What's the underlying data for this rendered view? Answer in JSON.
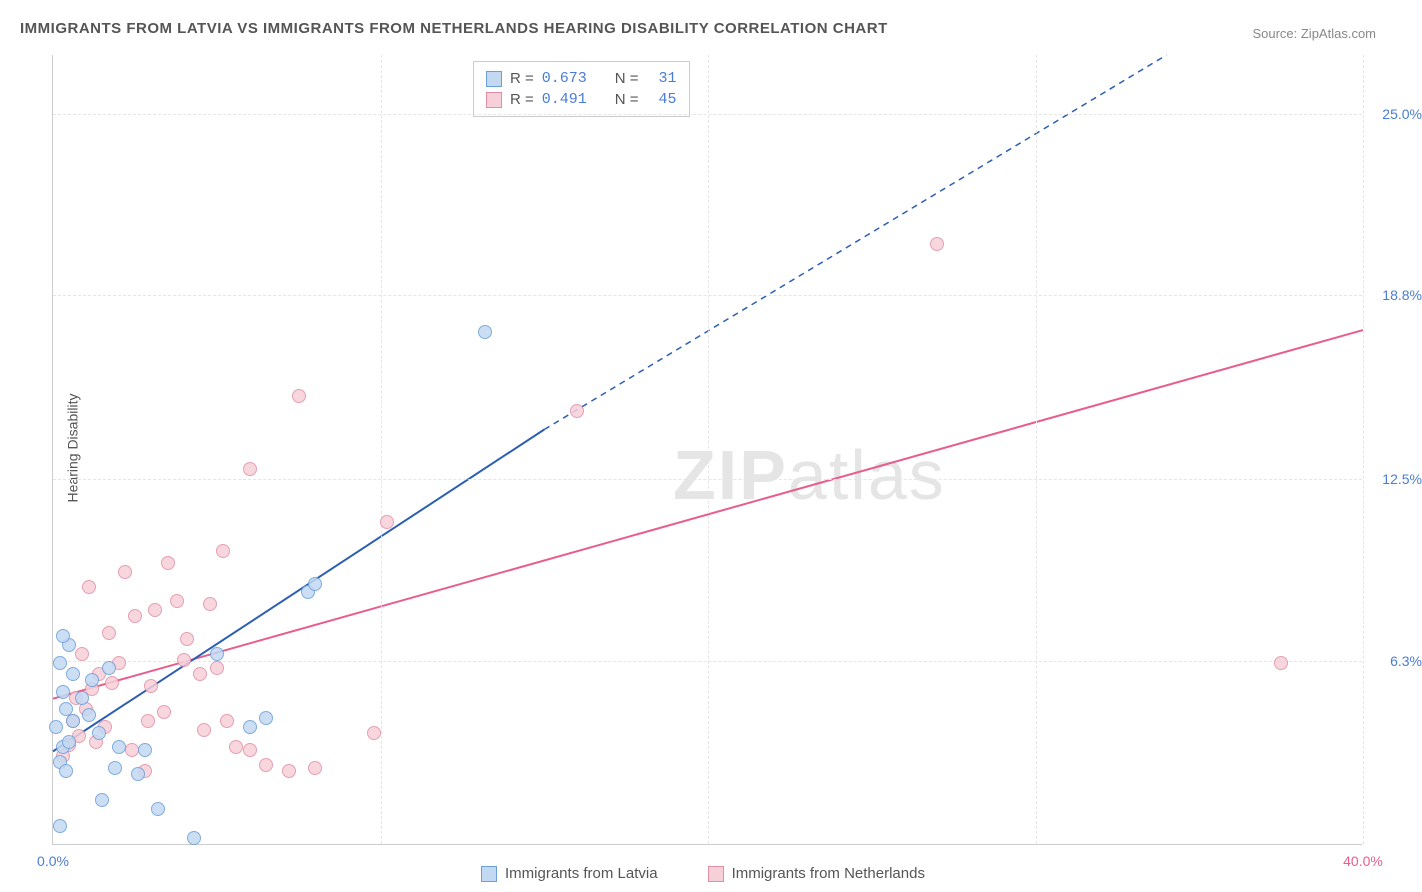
{
  "title": "IMMIGRANTS FROM LATVIA VS IMMIGRANTS FROM NETHERLANDS HEARING DISABILITY CORRELATION CHART",
  "source": "Source: ZipAtlas.com",
  "y_axis_title": "Hearing Disability",
  "watermark_bold": "ZIP",
  "watermark_thin": "atlas",
  "chart": {
    "type": "scatter",
    "xlim": [
      0,
      40
    ],
    "ylim": [
      0,
      27
    ],
    "x_ticks": [
      0,
      10,
      20,
      30,
      40
    ],
    "x_tick_labels": [
      "0.0%",
      "",
      "",
      "",
      "40.0%"
    ],
    "y_ticks": [
      6.3,
      12.5,
      18.8,
      25.0
    ],
    "y_tick_labels": [
      "6.3%",
      "12.5%",
      "18.8%",
      "25.0%"
    ],
    "x_tick_label_color_left": "#4a7dd4",
    "x_tick_label_color_right": "#e85d8a",
    "y_tick_label_color": "#4a7dd4",
    "background_color": "#ffffff",
    "grid_color": "#e5e5e5",
    "marker_radius": 7,
    "series": [
      {
        "name": "Immigrants from Latvia",
        "color_fill": "#c3d9f2",
        "color_stroke": "#6b9fd8",
        "line_color": "#2c5fb3",
        "line_width": 2,
        "r_label": "R =",
        "r_value": "0.673",
        "n_label": "N =",
        "n_value": "31",
        "trend_solid": {
          "x1": 0,
          "y1": 3.2,
          "x2": 15,
          "y2": 14.2
        },
        "trend_dashed": {
          "x1": 15,
          "y1": 14.2,
          "x2": 34,
          "y2": 27.0
        },
        "points": [
          [
            0.3,
            3.3
          ],
          [
            0.2,
            2.8
          ],
          [
            0.5,
            3.5
          ],
          [
            0.1,
            4.0
          ],
          [
            0.4,
            4.6
          ],
          [
            0.3,
            5.2
          ],
          [
            0.6,
            5.8
          ],
          [
            0.2,
            6.2
          ],
          [
            0.5,
            6.8
          ],
          [
            0.3,
            7.1
          ],
          [
            0.9,
            5.0
          ],
          [
            1.2,
            5.6
          ],
          [
            1.7,
            6.0
          ],
          [
            0.6,
            4.2
          ],
          [
            1.1,
            4.4
          ],
          [
            1.4,
            3.8
          ],
          [
            2.0,
            3.3
          ],
          [
            2.8,
            3.2
          ],
          [
            3.2,
            1.2
          ],
          [
            1.5,
            1.5
          ],
          [
            1.9,
            2.6
          ],
          [
            2.6,
            2.4
          ],
          [
            4.3,
            0.2
          ],
          [
            6.0,
            4.0
          ],
          [
            6.5,
            4.3
          ],
          [
            7.8,
            8.6
          ],
          [
            8.0,
            8.9
          ],
          [
            5.0,
            6.5
          ],
          [
            0.4,
            2.5
          ],
          [
            0.2,
            0.6
          ],
          [
            13.2,
            17.5
          ]
        ]
      },
      {
        "name": "Immigrants from Netherlands",
        "color_fill": "#f7cfd9",
        "color_stroke": "#e08fa6",
        "line_color": "#e85d8a",
        "line_width": 2,
        "r_label": "R =",
        "r_value": "0.491",
        "n_label": "N =",
        "n_value": "45",
        "trend_solid": {
          "x1": 0,
          "y1": 5.0,
          "x2": 40,
          "y2": 17.6
        },
        "points": [
          [
            0.3,
            3.0
          ],
          [
            0.5,
            3.4
          ],
          [
            0.8,
            3.7
          ],
          [
            0.6,
            4.2
          ],
          [
            1.0,
            4.6
          ],
          [
            1.2,
            5.3
          ],
          [
            1.4,
            5.8
          ],
          [
            1.8,
            5.5
          ],
          [
            2.0,
            6.2
          ],
          [
            0.9,
            6.5
          ],
          [
            1.7,
            7.2
          ],
          [
            1.1,
            8.8
          ],
          [
            2.2,
            9.3
          ],
          [
            3.5,
            9.6
          ],
          [
            4.1,
            7.0
          ],
          [
            4.8,
            8.2
          ],
          [
            3.8,
            8.3
          ],
          [
            5.2,
            10.0
          ],
          [
            6.0,
            12.8
          ],
          [
            7.5,
            15.3
          ],
          [
            2.9,
            4.2
          ],
          [
            3.4,
            4.5
          ],
          [
            3.0,
            5.4
          ],
          [
            4.6,
            3.9
          ],
          [
            5.3,
            4.2
          ],
          [
            5.6,
            3.3
          ],
          [
            6.0,
            3.2
          ],
          [
            6.5,
            2.7
          ],
          [
            7.2,
            2.5
          ],
          [
            8.0,
            2.6
          ],
          [
            4.5,
            5.8
          ],
          [
            5.0,
            6.0
          ],
          [
            2.5,
            7.8
          ],
          [
            3.1,
            8.0
          ],
          [
            1.6,
            4.0
          ],
          [
            2.4,
            3.2
          ],
          [
            2.8,
            2.5
          ],
          [
            0.7,
            5.0
          ],
          [
            1.3,
            3.5
          ],
          [
            9.8,
            3.8
          ],
          [
            10.2,
            11.0
          ],
          [
            16.0,
            14.8
          ],
          [
            27.0,
            20.5
          ],
          [
            37.5,
            6.2
          ],
          [
            4.0,
            6.3
          ]
        ]
      }
    ]
  },
  "x_legend": {
    "series1": "Immigrants from Latvia",
    "series2": "Immigrants from Netherlands"
  }
}
